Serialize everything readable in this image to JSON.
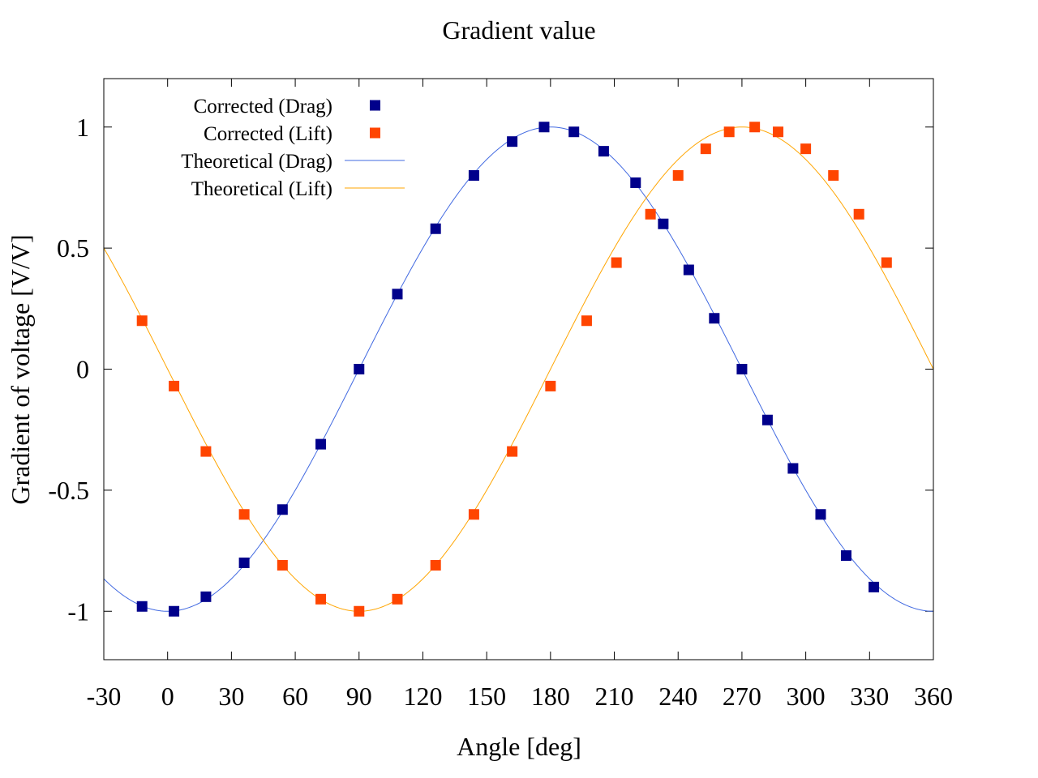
{
  "chart_data": {
    "type": "scatter",
    "title": "Gradient value",
    "xlabel": "Angle [deg]",
    "ylabel": "Gradient of voltage [V/V]",
    "xlim": [
      -30,
      360
    ],
    "ylim": [
      -1.2,
      1.2
    ],
    "xticks": [
      -30,
      0,
      30,
      60,
      90,
      120,
      150,
      180,
      210,
      240,
      270,
      300,
      330,
      360
    ],
    "yticks": [
      1,
      0.5,
      0,
      -0.5,
      -1
    ],
    "ytick_labels": [
      "1",
      "0.5",
      "0",
      "-0.5",
      "-1"
    ],
    "grid": false,
    "legend_position": "top-left",
    "series": [
      {
        "name": "Corrected (Drag)",
        "kind": "points",
        "marker": "square",
        "color": "#00008b",
        "x": [
          -12,
          3,
          18,
          36,
          54,
          72,
          90,
          108,
          126,
          144,
          162,
          177,
          191,
          205,
          220,
          233,
          245,
          257,
          270,
          282,
          294,
          307,
          319,
          332
        ],
        "y": [
          -0.98,
          -1.0,
          -0.94,
          -0.8,
          -0.58,
          -0.31,
          0.0,
          0.31,
          0.58,
          0.8,
          0.94,
          1.0,
          0.98,
          0.9,
          0.77,
          0.6,
          0.41,
          0.21,
          0.0,
          -0.21,
          -0.41,
          -0.6,
          -0.77,
          -0.9
        ]
      },
      {
        "name": "Corrected (Lift)",
        "kind": "points",
        "marker": "square",
        "color": "#ff4500",
        "x": [
          -12,
          3,
          18,
          36,
          54,
          72,
          90,
          108,
          126,
          144,
          162,
          180,
          197,
          211,
          227,
          240,
          253,
          264,
          276,
          287,
          300,
          313,
          325,
          338
        ],
        "y": [
          0.2,
          -0.07,
          -0.34,
          -0.6,
          -0.81,
          -0.95,
          -1.0,
          -0.95,
          -0.81,
          -0.6,
          -0.34,
          -0.07,
          0.2,
          0.44,
          0.64,
          0.8,
          0.91,
          0.98,
          1.0,
          0.98,
          0.91,
          0.8,
          0.64,
          0.44
        ]
      },
      {
        "name": "Theoretical (Drag)",
        "kind": "line",
        "formula": "-cos(angle)",
        "color": "#4169e1"
      },
      {
        "name": "Theoretical (Lift)",
        "kind": "line",
        "formula": "-sin(angle)",
        "color": "#ffa500"
      }
    ]
  }
}
